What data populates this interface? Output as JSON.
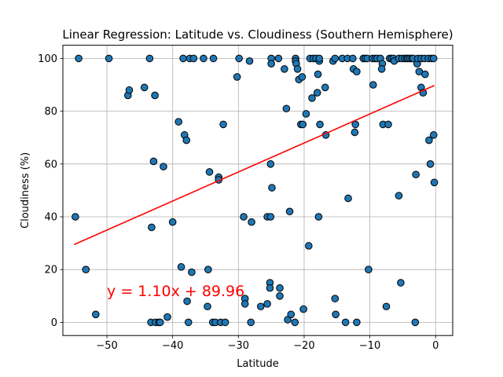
{
  "chart_data": {
    "type": "scatter",
    "title": "Linear Regression: Latitude vs. Cloudiness (Southern Hemisphere)",
    "xlabel": "Latitude",
    "ylabel": "Cloudiness (%)",
    "xlim": [
      -56.7,
      2.6
    ],
    "ylim": [
      -5,
      105
    ],
    "xticks": [
      -50,
      -40,
      -30,
      -20,
      -10,
      0
    ],
    "yticks": [
      0,
      20,
      40,
      60,
      80,
      100
    ],
    "grid": true,
    "marker_color": "#1f77b4",
    "marker_edge": "#000000",
    "series": [
      {
        "points": [
          [
            -54.8,
            40
          ],
          [
            -54.3,
            100
          ],
          [
            -53.2,
            20
          ],
          [
            -51.7,
            3
          ],
          [
            -49.7,
            100
          ],
          [
            -46.8,
            86
          ],
          [
            -46.6,
            88
          ],
          [
            -44.3,
            89
          ],
          [
            -43.5,
            100
          ],
          [
            -43.3,
            0
          ],
          [
            -43.2,
            36
          ],
          [
            -42.9,
            61
          ],
          [
            -42.7,
            86
          ],
          [
            -42.6,
            0
          ],
          [
            -42.1,
            0
          ],
          [
            -41.9,
            0
          ],
          [
            -41.4,
            59
          ],
          [
            -40.8,
            2
          ],
          [
            -40.0,
            38
          ],
          [
            -39.1,
            76
          ],
          [
            -38.7,
            21
          ],
          [
            -38.4,
            100
          ],
          [
            -38.2,
            71
          ],
          [
            -37.9,
            69
          ],
          [
            -37.8,
            8
          ],
          [
            -37.6,
            0
          ],
          [
            -37.4,
            100
          ],
          [
            -37.1,
            19
          ],
          [
            -36.8,
            100
          ],
          [
            -35.3,
            100
          ],
          [
            -34.6,
            20
          ],
          [
            -34.7,
            6
          ],
          [
            -34.4,
            57
          ],
          [
            -33.8,
            100
          ],
          [
            -33.9,
            0
          ],
          [
            -33.5,
            0
          ],
          [
            -33.0,
            55
          ],
          [
            -33.0,
            54
          ],
          [
            -32.7,
            0
          ],
          [
            -32.3,
            75
          ],
          [
            -32.0,
            0
          ],
          [
            -30.2,
            93
          ],
          [
            -29.9,
            100
          ],
          [
            -29.2,
            40
          ],
          [
            -29.0,
            9
          ],
          [
            -29.0,
            7
          ],
          [
            -28.3,
            99
          ],
          [
            -28.0,
            38
          ],
          [
            -28.1,
            0
          ],
          [
            -26.6,
            6
          ],
          [
            -25.6,
            7
          ],
          [
            -25.6,
            40
          ],
          [
            -25.2,
            15
          ],
          [
            -25.2,
            13
          ],
          [
            -25.1,
            60
          ],
          [
            -24.9,
            51
          ],
          [
            -25.1,
            40
          ],
          [
            -25.0,
            100
          ],
          [
            -25.0,
            98
          ],
          [
            -23.9,
            100
          ],
          [
            -23.7,
            13
          ],
          [
            -23.7,
            10
          ],
          [
            -23.0,
            96
          ],
          [
            -22.7,
            81
          ],
          [
            -22.5,
            1
          ],
          [
            -22.2,
            42
          ],
          [
            -22.0,
            3
          ],
          [
            -21.4,
            0
          ],
          [
            -21.3,
            100
          ],
          [
            -21.3,
            99
          ],
          [
            -21.2,
            98
          ],
          [
            -21.0,
            96
          ],
          [
            -20.8,
            92
          ],
          [
            -20.5,
            75
          ],
          [
            -20.2,
            75
          ],
          [
            -20.3,
            93
          ],
          [
            -20.1,
            5
          ],
          [
            -19.7,
            79
          ],
          [
            -19.3,
            29
          ],
          [
            -19.1,
            100
          ],
          [
            -18.8,
            85
          ],
          [
            -18.6,
            100
          ],
          [
            -18.2,
            100
          ],
          [
            -18.0,
            87
          ],
          [
            -17.9,
            94
          ],
          [
            -17.7,
            99
          ],
          [
            -17.7,
            100
          ],
          [
            -17.6,
            75
          ],
          [
            -17.8,
            40
          ],
          [
            -16.8,
            89
          ],
          [
            -16.7,
            71
          ],
          [
            -15.6,
            99
          ],
          [
            -15.3,
            100
          ],
          [
            -15.3,
            9
          ],
          [
            -15.2,
            3
          ],
          [
            -14.2,
            100
          ],
          [
            -13.7,
            0
          ],
          [
            -13.4,
            100
          ],
          [
            -13.3,
            47
          ],
          [
            -12.6,
            100
          ],
          [
            -12.5,
            96
          ],
          [
            -12.3,
            72
          ],
          [
            -12.2,
            75
          ],
          [
            -12.0,
            95
          ],
          [
            -12.0,
            0
          ],
          [
            -11.0,
            100
          ],
          [
            -10.7,
            100
          ],
          [
            -10.4,
            100
          ],
          [
            -10.2,
            20
          ],
          [
            -9.6,
            100
          ],
          [
            -9.5,
            90
          ],
          [
            -9.2,
            100
          ],
          [
            -8.9,
            100
          ],
          [
            -8.4,
            100
          ],
          [
            -8.1,
            98
          ],
          [
            -8.2,
            96
          ],
          [
            -8.0,
            75
          ],
          [
            -7.5,
            6
          ],
          [
            -7.2,
            75
          ],
          [
            -7.0,
            100
          ],
          [
            -6.7,
            100
          ],
          [
            -6.4,
            100
          ],
          [
            -6.3,
            99
          ],
          [
            -5.6,
            100
          ],
          [
            -5.6,
            48
          ],
          [
            -5.3,
            15
          ],
          [
            -5.1,
            100
          ],
          [
            -4.7,
            100
          ],
          [
            -4.4,
            100
          ],
          [
            -4.2,
            100
          ],
          [
            -3.9,
            100
          ],
          [
            -3.6,
            100
          ],
          [
            -3.4,
            100
          ],
          [
            -3.1,
            0
          ],
          [
            -3.0,
            56
          ],
          [
            -2.8,
            98
          ],
          [
            -2.7,
            100
          ],
          [
            -2.5,
            95
          ],
          [
            -2.2,
            89
          ],
          [
            -2.2,
            100
          ],
          [
            -1.9,
            87
          ],
          [
            -1.7,
            100
          ],
          [
            -1.6,
            94
          ],
          [
            -1.1,
            100
          ],
          [
            -1.0,
            69
          ],
          [
            -0.8,
            60
          ],
          [
            -0.6,
            100
          ],
          [
            -0.3,
            100
          ],
          [
            -0.3,
            71
          ],
          [
            -0.2,
            53
          ]
        ]
      }
    ],
    "regression": {
      "slope": 1.1,
      "intercept": 89.96,
      "x_range": [
        -55.0,
        -0.2
      ],
      "color": "#ff0000",
      "equation": "y = 1.10x + 89.96",
      "equation_anchor": [
        -50,
        10
      ]
    }
  }
}
